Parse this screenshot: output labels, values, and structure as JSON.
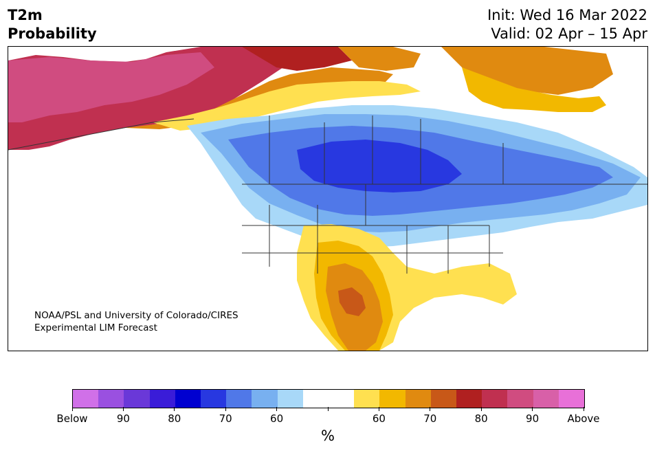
{
  "title": {
    "line1": "T2m",
    "line2": "Probability"
  },
  "header_right": {
    "init": "Init: Wed 16 Mar 2022",
    "valid": "Valid: 02 Apr – 15 Apr"
  },
  "credit": {
    "line1": "NOAA/PSL and University of Colorado/CIRES",
    "line2": "Experimental LIM Forecast"
  },
  "colorbar": {
    "colors": [
      "#d070e8",
      "#9a50e0",
      "#6a38d8",
      "#3a1cd8",
      "#0000d0",
      "#2838e0",
      "#5078e8",
      "#78b0f0",
      "#a8d8f8",
      "#ffffff",
      "#ffffff",
      "#ffe050",
      "#f2b800",
      "#e08a10",
      "#c85818",
      "#b02020",
      "#c03050",
      "#d04c80",
      "#d860a8",
      "#e870d8"
    ],
    "tick_labels": [
      "Below",
      "90",
      "80",
      "70",
      "60",
      "",
      "",
      "60",
      "70",
      "80",
      "90",
      "Above"
    ],
    "unit": "%"
  },
  "legend_colors": {
    "below_strong": "#2838e0",
    "below_mid": "#5078e8",
    "below_weak": "#a8d8f8",
    "above_weak": "#ffe050",
    "above_mid": "#f2b800",
    "above_strong": "#e08a10",
    "above_very": "#b02020",
    "above_max": "#d04c80"
  }
}
